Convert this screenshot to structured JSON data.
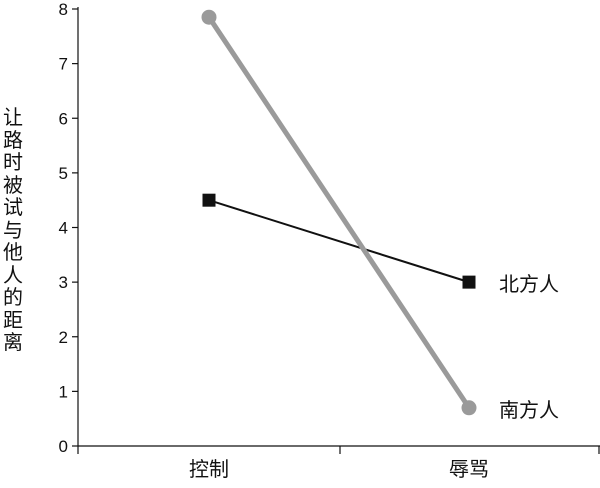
{
  "chart_data": {
    "type": "line",
    "categories": [
      "控制",
      "辱骂"
    ],
    "ylabel": "让路时被试与他人的距离",
    "ylim": [
      0,
      8
    ],
    "yticks": [
      0,
      1,
      2,
      3,
      4,
      5,
      6,
      7,
      8
    ],
    "grid": false,
    "legend_placement": "inline labels at line ends (right)",
    "series": [
      {
        "name": "北方人",
        "values": [
          4.5,
          3.0
        ],
        "color": "#111111",
        "marker": "square"
      },
      {
        "name": "南方人",
        "values": [
          7.85,
          0.7
        ],
        "color": "#9a9a9a",
        "marker": "circle"
      }
    ]
  }
}
